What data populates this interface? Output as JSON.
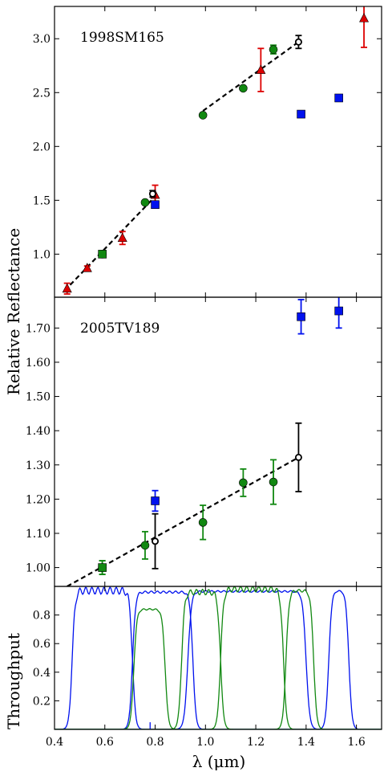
{
  "figure": {
    "ylabel_top": "Relative Reflectance",
    "ylabel_bottom": "Throughput",
    "xlabel": "λ (μm)"
  },
  "chart_data": [
    {
      "type": "scatter",
      "label": "1998SM165",
      "xlim": [
        0.4,
        1.7
      ],
      "ylim": [
        0.6,
        3.3
      ],
      "yticks": [
        1.0,
        1.5,
        2.0,
        2.5,
        3.0
      ],
      "ytick_labels": [
        "1.0",
        "1.5",
        "2.0",
        "2.5",
        "3.0"
      ],
      "series": [
        {
          "marker": "triangle",
          "color": "#dd0000",
          "points": [
            [
              0.45,
              0.68,
              0.05
            ],
            [
              0.53,
              0.87,
              0.02
            ],
            [
              0.67,
              1.15,
              0.06
            ],
            [
              0.8,
              1.55,
              0.09
            ],
            [
              1.22,
              2.71,
              0.2
            ],
            [
              1.63,
              3.19,
              0.27
            ]
          ]
        },
        {
          "marker": "circle",
          "color": "#118811",
          "points": [
            [
              0.59,
              1.0,
              0
            ],
            [
              0.76,
              1.48,
              0
            ],
            [
              0.99,
              2.29,
              0
            ],
            [
              1.15,
              2.54,
              0
            ],
            [
              1.27,
              2.9,
              0.04
            ]
          ]
        },
        {
          "marker": "square",
          "color": "#0011ee",
          "points": [
            [
              0.8,
              1.46,
              0.03
            ],
            [
              1.38,
              2.3,
              0
            ],
            [
              1.53,
              2.45,
              0
            ]
          ]
        },
        {
          "marker": "open-circle",
          "color": "#000000",
          "points": [
            [
              0.79,
              1.56,
              0.03
            ],
            [
              1.37,
              2.97,
              0.06
            ]
          ]
        },
        {
          "marker": "square",
          "color": "#118811",
          "points": [
            [
              0.59,
              1.0,
              0
            ]
          ]
        }
      ],
      "fit_lines": [
        [
          [
            0.44,
            0.66
          ],
          [
            0.81,
            1.56
          ]
        ],
        [
          [
            0.99,
            2.33
          ],
          [
            1.37,
            2.97
          ]
        ]
      ]
    },
    {
      "type": "scatter",
      "label": "2005TV189",
      "xlim": [
        0.4,
        1.7
      ],
      "ylim": [
        0.945,
        1.79
      ],
      "yticks": [
        1.0,
        1.1,
        1.2,
        1.3,
        1.4,
        1.5,
        1.6,
        1.7
      ],
      "ytick_labels": [
        "1.00",
        "1.10",
        "1.20",
        "1.30",
        "1.40",
        "1.50",
        "1.60",
        "1.70"
      ],
      "series": [
        {
          "marker": "circle",
          "color": "#118811",
          "points": [
            [
              0.59,
              1.0,
              0.02
            ],
            [
              0.76,
              1.065,
              0.04
            ],
            [
              0.99,
              1.132,
              0.05
            ],
            [
              1.15,
              1.248,
              0.04
            ],
            [
              1.27,
              1.25,
              0.065
            ]
          ]
        },
        {
          "marker": "square",
          "color": "#118811",
          "points": [
            [
              0.59,
              1.0,
              0.02
            ]
          ]
        },
        {
          "marker": "square",
          "color": "#0011ee",
          "points": [
            [
              0.8,
              1.195,
              0.03
            ],
            [
              1.38,
              1.733,
              0.05
            ],
            [
              1.53,
              1.75,
              0.05
            ]
          ]
        },
        {
          "marker": "open-circle",
          "color": "#000000",
          "points": [
            [
              0.8,
              1.077,
              0.08
            ],
            [
              1.37,
              1.322,
              0.1
            ]
          ]
        }
      ],
      "fit_lines": [
        [
          [
            0.45,
            0.945
          ],
          [
            1.37,
            1.322
          ]
        ]
      ]
    },
    {
      "type": "line",
      "xlim": [
        0.4,
        1.7
      ],
      "ylim": [
        0.0,
        1.0
      ],
      "yticks": [
        0.2,
        0.4,
        0.6,
        0.8
      ],
      "ytick_labels": [
        "0.2",
        "0.4",
        "0.6",
        "0.8"
      ],
      "xticks": [
        0.4,
        0.6,
        0.8,
        1.0,
        1.2,
        1.4,
        1.6
      ],
      "xtick_labels": [
        "0.4",
        "0.6",
        "0.8",
        "1.0",
        "1.2",
        "1.4",
        "1.6"
      ],
      "filters": [
        {
          "color": "#0011ee",
          "lo": 0.47,
          "hi": 0.71,
          "peak": 0.97,
          "ripple": 0.025,
          "edge": 0.006
        },
        {
          "color": "#0011ee",
          "lo": 0.71,
          "hi": 0.95,
          "peak": 0.96,
          "ripple": 0.008,
          "edge": 0.006
        },
        {
          "color": "#0011ee",
          "lo": 0.93,
          "hi": 1.4,
          "peak": 0.965,
          "ripple": 0.006,
          "edge": 0.007
        },
        {
          "color": "#0011ee",
          "lo": 1.49,
          "hi": 1.57,
          "peak": 0.97,
          "ripple": 0.004,
          "edge": 0.006
        },
        {
          "color": "#118811",
          "lo": 0.715,
          "hi": 0.84,
          "peak": 0.84,
          "ripple": 0.006,
          "edge": 0.006
        },
        {
          "color": "#118811",
          "lo": 0.905,
          "hi": 1.06,
          "peak": 0.96,
          "ripple": 0.02,
          "edge": 0.006
        },
        {
          "color": "#118811",
          "lo": 1.06,
          "hi": 1.31,
          "peak": 0.98,
          "ripple": 0.02,
          "edge": 0.006
        },
        {
          "color": "#118811",
          "lo": 1.32,
          "hi": 1.43,
          "peak": 0.97,
          "ripple": 0.01,
          "edge": 0.006
        }
      ]
    }
  ]
}
